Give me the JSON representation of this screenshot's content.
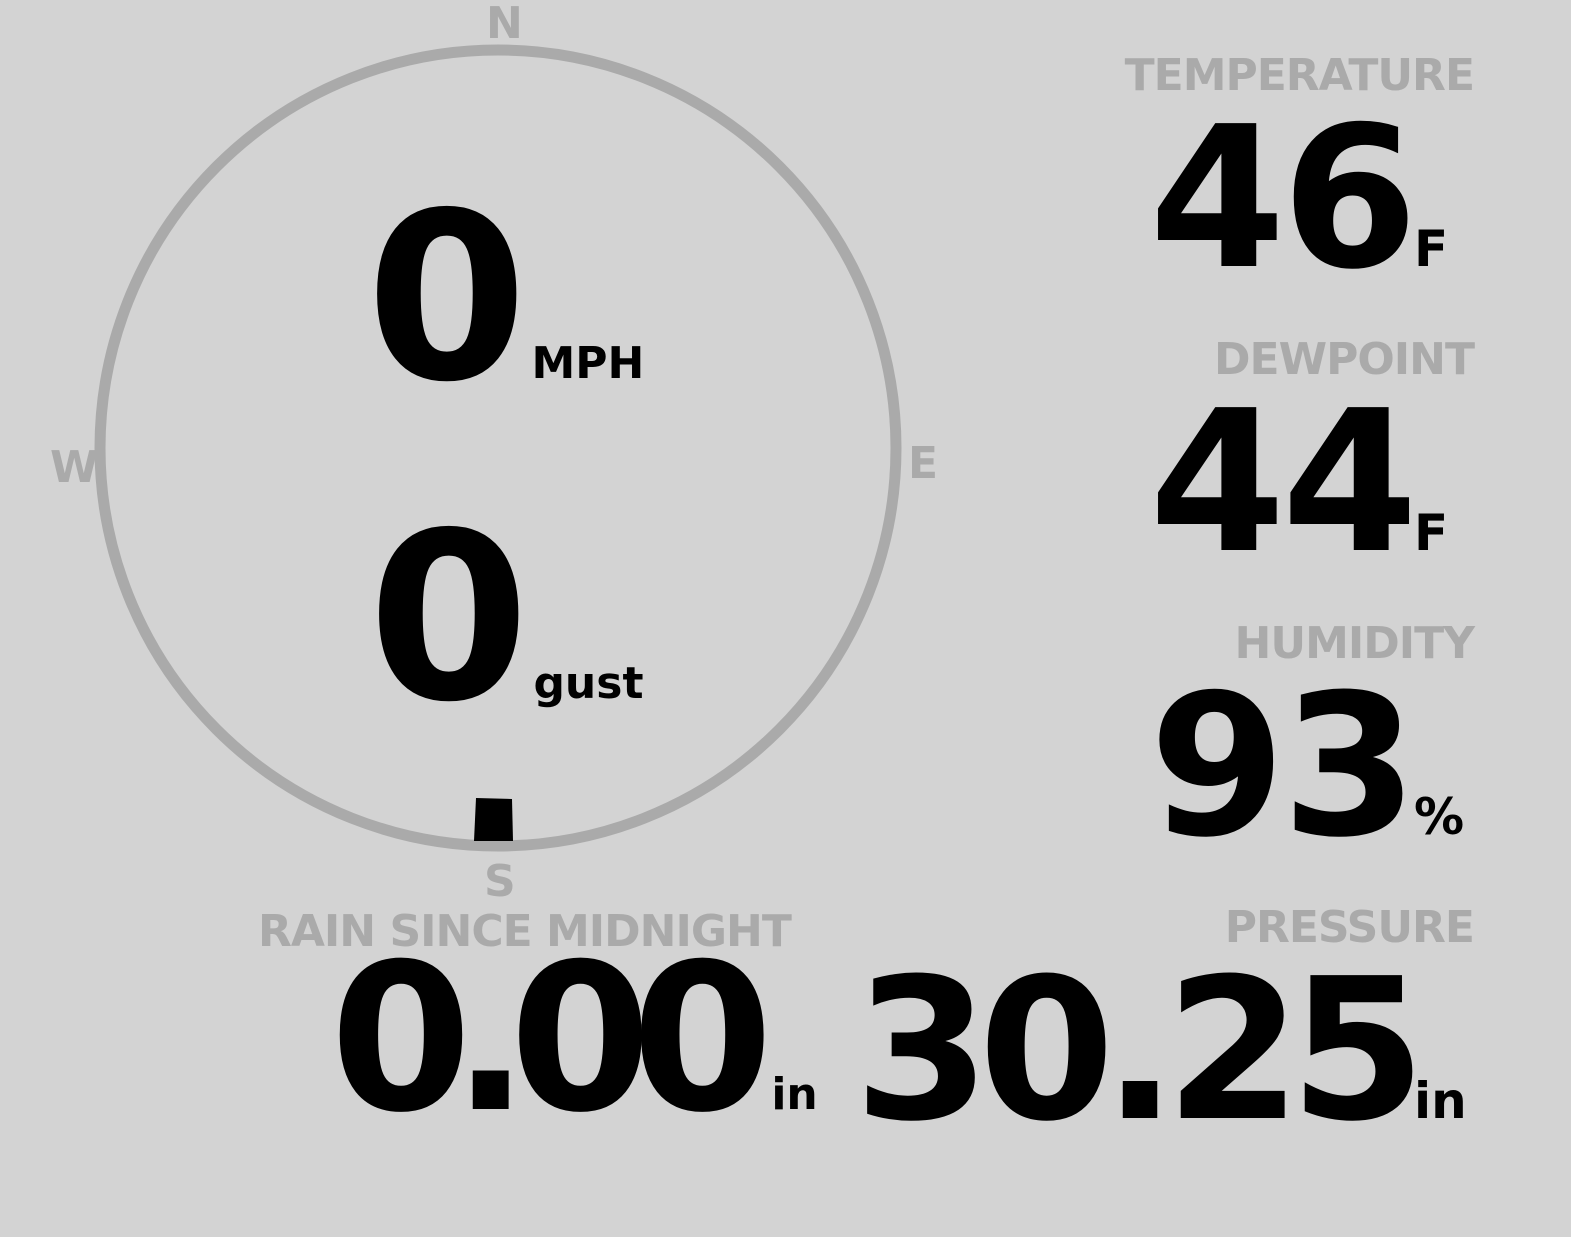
{
  "colors": {
    "background": "#d3d3d3",
    "label": "#aaaaaa",
    "value": "#000000"
  },
  "wind": {
    "compass": {
      "n": "N",
      "e": "E",
      "s": "S",
      "w": "W"
    },
    "direction_deg": 180,
    "speed": "0",
    "speed_unit": "MPH",
    "gust": "0",
    "gust_unit": "gust"
  },
  "rain": {
    "label": "RAIN SINCE MIDNIGHT",
    "value": "0.00",
    "unit": "in"
  },
  "temperature": {
    "label": "TEMPERATURE",
    "value": "46",
    "unit": "F"
  },
  "dewpoint": {
    "label": "DEWPOINT",
    "value": "44",
    "unit": "F"
  },
  "humidity": {
    "label": "HUMIDITY",
    "value": "93",
    "unit": "%"
  },
  "pressure": {
    "label": "PRESSURE",
    "value": "30.25",
    "unit": "in"
  }
}
